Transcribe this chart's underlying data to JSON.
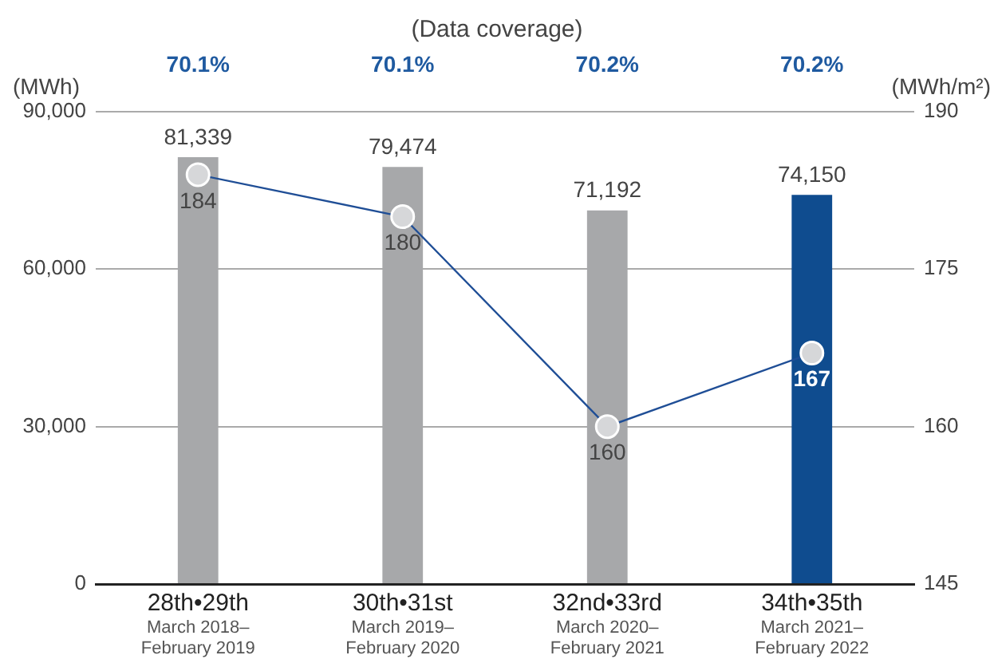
{
  "chart_data": {
    "type": "bar",
    "categories": [
      "28th•29th\nMarch 2018–\nFebruary 2019",
      "30th•31st\nMarch 2019–\nFebruary 2020",
      "32nd•33rd\nMarch 2020–\nFebruary 2021",
      "34th•35th\nMarch 2021–\nFebruary 2022"
    ],
    "series": [
      {
        "colors": [
          "#a7a8aa",
          "#a7a8aa",
          "#a7a8aa",
          "#0f4c8f"
        ],
        "values": [
          81339,
          79474,
          71192,
          74150
        ],
        "value_labels": [
          "81,339",
          "79,474",
          "71,192",
          "74,150"
        ]
      },
      {
        "type": "line",
        "axis": "y2",
        "color": "#1f4e96",
        "values": [
          184,
          180,
          160,
          167
        ],
        "value_labels": [
          "184",
          "180",
          "160",
          "167"
        ]
      }
    ],
    "ylabel": "(MWh)",
    "y2label": "(MWh/m²)",
    "ylim": [
      0,
      90000
    ],
    "yticks": [
      0,
      {
        "value": 30000,
        "label": "30,000"
      },
      {
        "value": 60000,
        "label": "60,000"
      },
      {
        "value": 90000,
        "label": "90,000"
      }
    ],
    "y2lim": [
      145,
      190
    ],
    "y2ticks": [
      145,
      160,
      175,
      190
    ],
    "grid": "y",
    "legend": false,
    "marker": "circle",
    "annotations": [
      "(Data coverage)",
      "70.1%",
      "70.1%",
      "70.2%",
      "70.2%"
    ]
  }
}
